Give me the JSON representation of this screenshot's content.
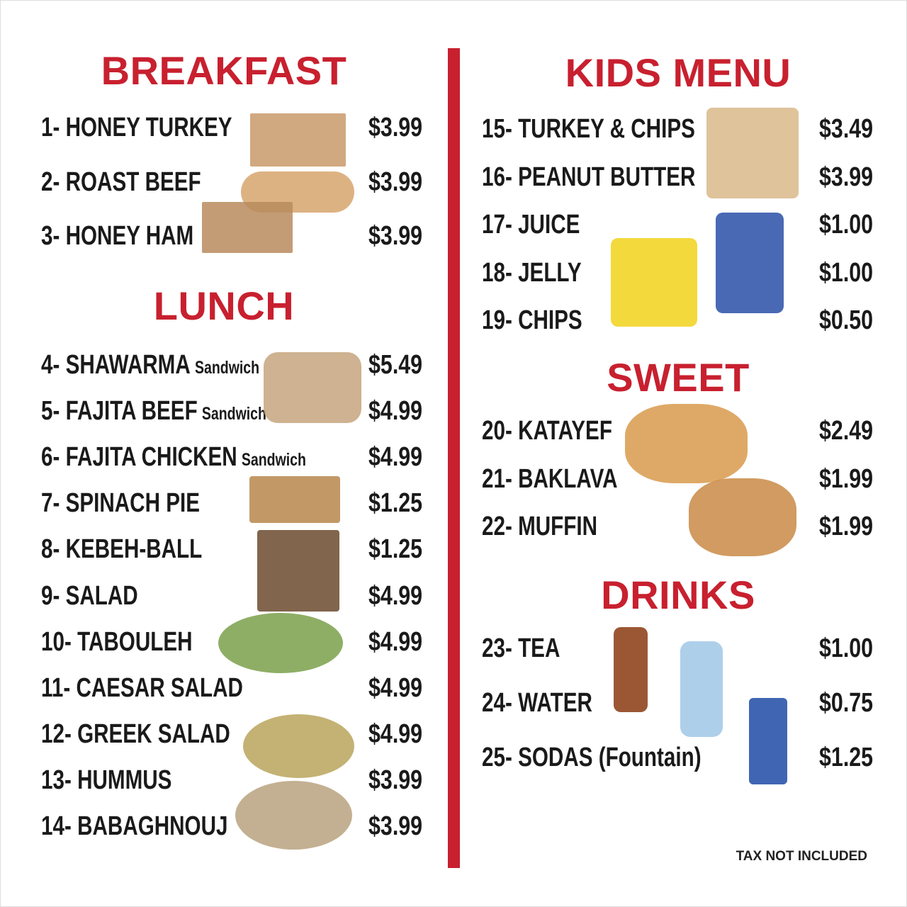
{
  "colors": {
    "accent": "#c8202f",
    "text": "#1a1a1a"
  },
  "sections": [
    {
      "title": "BREAKFAST",
      "items": [
        {
          "name": "1- HONEY TURKEY",
          "price": "$3.99"
        },
        {
          "name": "2- ROAST BEEF",
          "price": "$3.99"
        },
        {
          "name": "3- HONEY HAM",
          "price": "$3.99"
        }
      ]
    },
    {
      "title": "LUNCH",
      "items": [
        {
          "name": "4-  SHAWARMA",
          "suffix": "Sandwich",
          "price": "$5.49"
        },
        {
          "name": "5-  FAJITA BEEF",
          "suffix": "Sandwich",
          "price": "$4.99"
        },
        {
          "name": "6-  FAJITA CHICKEN",
          "suffix": "Sandwich",
          "price": "$4.99"
        },
        {
          "name": "7-  SPINACH PIE",
          "price": "$1.25"
        },
        {
          "name": "8-  KEBEH-BALL",
          "price": "$1.25"
        },
        {
          "name": "9- SALAD",
          "price": "$4.99"
        },
        {
          "name": "10- TABOULEH",
          "price": "$4.99"
        },
        {
          "name": "11- CAESAR SALAD",
          "price": "$4.99"
        },
        {
          "name": "12- GREEK SALAD",
          "price": "$4.99"
        },
        {
          "name": "13- HUMMUS",
          "price": "$3.99"
        },
        {
          "name": "14- BABAGHNOUJ",
          "price": "$3.99"
        }
      ]
    },
    {
      "title": "KIDS MENU",
      "items": [
        {
          "name": "15- TURKEY & CHIPS",
          "price": "$3.49"
        },
        {
          "name": "16- PEANUT BUTTER",
          "price": "$3.99"
        },
        {
          "name": "17- JUICE",
          "price": "$1.00"
        },
        {
          "name": "18- JELLY",
          "price": "$1.00"
        },
        {
          "name": "19- CHIPS",
          "price": "$0.50"
        }
      ]
    },
    {
      "title": "SWEET",
      "items": [
        {
          "name": "20- KATAYEF",
          "price": "$2.49"
        },
        {
          "name": "21- BAKLAVA",
          "price": "$1.99"
        },
        {
          "name": "22- MUFFIN",
          "price": "$1.99"
        }
      ]
    },
    {
      "title": "DRINKS",
      "items": [
        {
          "name": "23- TEA",
          "price": "$1.00"
        },
        {
          "name": "24- WATER",
          "price": "$0.75"
        },
        {
          "name": "25- SODAS (Fountain)",
          "price": "$1.25"
        }
      ]
    }
  ],
  "footer": {
    "tax_note": "TAX NOT INCLUDED"
  },
  "images": [
    {
      "name": "turkey-sandwich-photo",
      "color": "#c99a6a"
    },
    {
      "name": "roast-beef-sub-photo",
      "color": "#d7a46d"
    },
    {
      "name": "ham-sandwich-photo",
      "color": "#b98b5e"
    },
    {
      "name": "shawarma-wrap-photo",
      "color": "#c6a57e"
    },
    {
      "name": "spinach-pie-photo",
      "color": "#b7864b"
    },
    {
      "name": "kebeh-ball-photo",
      "color": "#6b4a2e"
    },
    {
      "name": "tabouleh-photo",
      "color": "#7aa04a"
    },
    {
      "name": "hummus-photo",
      "color": "#b9a45a"
    },
    {
      "name": "babaghnouj-photo",
      "color": "#b8a27f"
    },
    {
      "name": "peanut-butter-sandwich-photo",
      "color": "#d9b98a"
    },
    {
      "name": "lays-chips-bag-photo",
      "color": "#f2d21b"
    },
    {
      "name": "ruffles-chips-bag-photo",
      "color": "#2a4fa8"
    },
    {
      "name": "katayef-photo",
      "color": "#d89a4c"
    },
    {
      "name": "muffin-photo",
      "color": "#c98a45"
    },
    {
      "name": "tea-bottle-photo",
      "color": "#8a3a10"
    },
    {
      "name": "water-bottle-photo",
      "color": "#9fc7e6"
    },
    {
      "name": "pepsi-cup-photo",
      "color": "#1f4aa5"
    }
  ]
}
